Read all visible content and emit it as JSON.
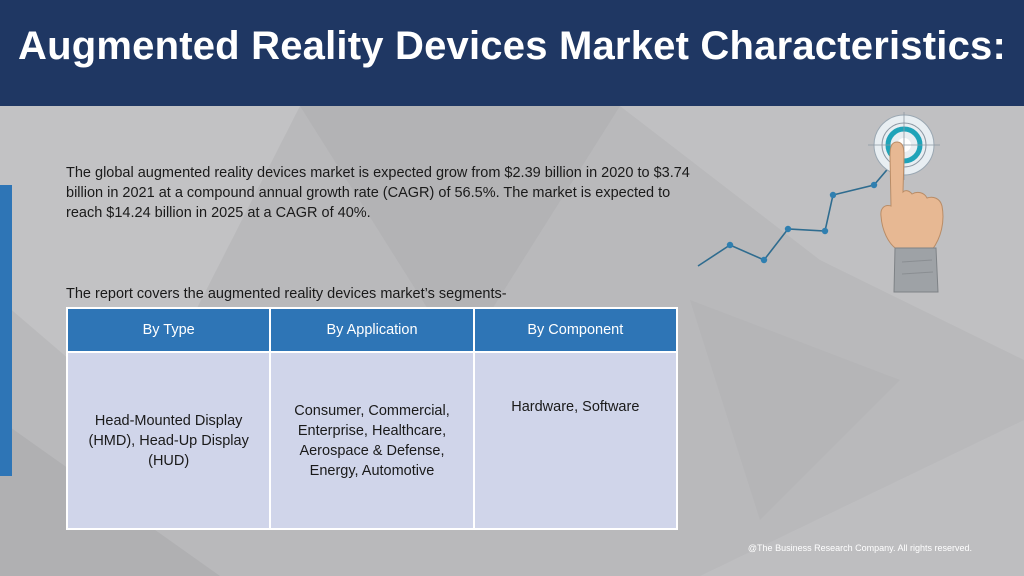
{
  "title": "Augmented Reality Devices Market Characteristics:",
  "intro": "The global augmented reality devices market is expected grow from $2.39 billion in 2020 to $3.74 billion in 2021 at a compound annual growth rate (CAGR) of 56.5%. The market is expected to reach $14.24 billion in 2025 at a CAGR of 40%.",
  "segments_label": "The report covers the augmented reality devices market’s segments-",
  "table": {
    "headers": [
      "By Type",
      "By Application",
      "By Component"
    ],
    "cells": [
      "Head-Mounted Display (HMD), Head-Up Display (HUD)",
      "Consumer, Commercial, Enterprise, Healthcare, Aerospace & Defense, Energy, Automotive",
      "Hardware, Software"
    ]
  },
  "footer": "@The Business Research Company. All rights reserved.",
  "colors": {
    "header_bg": "#1f3763",
    "accent": "#2e75b6",
    "cell_bg": "#d0d5ea",
    "target": "#1fa3b8"
  },
  "icons": [
    "growth-line-icon",
    "target-icon",
    "pointing-hand-icon"
  ]
}
